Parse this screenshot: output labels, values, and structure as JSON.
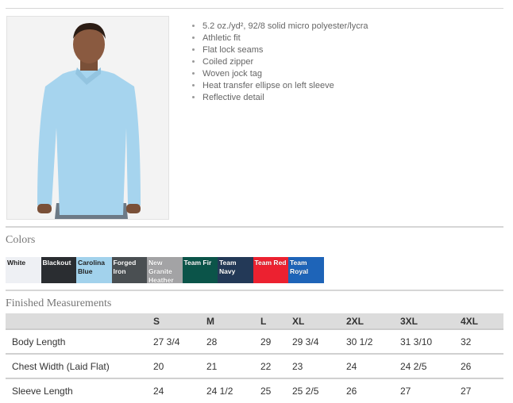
{
  "product": {
    "features": [
      "5.2 oz./yd², 92/8 solid micro polyester/lycra",
      "Athletic fit",
      "Flat lock seams",
      "Coiled zipper",
      "Woven jock tag",
      "Heat transfer ellipse on left sleeve",
      "Reflective detail"
    ]
  },
  "colors": {
    "heading": "Colors",
    "swatches": [
      {
        "name": "White",
        "hex": "#eef0f4",
        "dark_text": true
      },
      {
        "name": "Blackout",
        "hex": "#2a2d31"
      },
      {
        "name": "Carolina Blue",
        "hex": "#a2d2ec",
        "dark_text": true
      },
      {
        "name": "Forged Iron",
        "hex": "#4a4f52"
      },
      {
        "name": "New Granite Heather",
        "hex": "#a3a3a5"
      },
      {
        "name": "Team Fir",
        "hex": "#0b5449"
      },
      {
        "name": "Team Navy",
        "hex": "#233957"
      },
      {
        "name": "Team Red",
        "hex": "#ec2130"
      },
      {
        "name": "Team Royal",
        "hex": "#1e64b8"
      }
    ]
  },
  "measurements": {
    "heading": "Finished Measurements",
    "columns": [
      "",
      "S",
      "M",
      "L",
      "XL",
      "2XL",
      "3XL",
      "4XL"
    ],
    "rows": [
      [
        "Body Length",
        "27 3/4",
        "28",
        "29",
        "29 3/4",
        "30 1/2",
        "31 3/10",
        "32"
      ],
      [
        "Chest Width (Laid Flat)",
        "20",
        "21",
        "22",
        "23",
        "24",
        "24 2/5",
        "26"
      ],
      [
        "Sleeve Length",
        "24",
        "24 1/2",
        "25",
        "25 2/5",
        "26",
        "27",
        "27"
      ]
    ]
  }
}
